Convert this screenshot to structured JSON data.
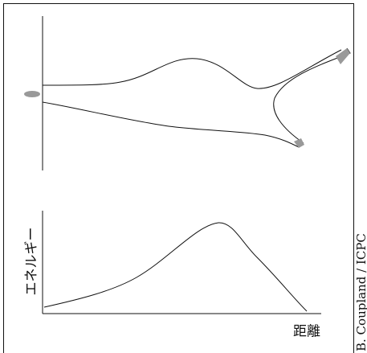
{
  "diagram": {
    "y_label": "エネルギー",
    "x_label": "距離",
    "credit": "B. Coupland / ICPC"
  }
}
